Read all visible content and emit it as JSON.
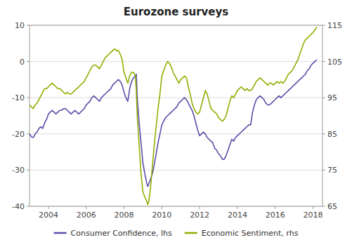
{
  "chart_data": {
    "type": "line",
    "title": "Eurozone surveys",
    "x": [
      2003.0,
      2003.1,
      2003.2,
      2003.3,
      2003.4,
      2003.5,
      2003.6,
      2003.7,
      2003.8,
      2003.9,
      2004.0,
      2004.1,
      2004.2,
      2004.3,
      2004.4,
      2004.5,
      2004.6,
      2004.7,
      2004.8,
      2004.9,
      2005.0,
      2005.1,
      2005.2,
      2005.3,
      2005.4,
      2005.5,
      2005.6,
      2005.7,
      2005.8,
      2005.9,
      2006.0,
      2006.1,
      2006.2,
      2006.3,
      2006.4,
      2006.5,
      2006.6,
      2006.7,
      2006.8,
      2006.9,
      2007.0,
      2007.1,
      2007.2,
      2007.3,
      2007.4,
      2007.5,
      2007.6,
      2007.7,
      2007.8,
      2007.9,
      2008.0,
      2008.1,
      2008.2,
      2008.3,
      2008.4,
      2008.5,
      2008.6,
      2008.65,
      2008.7,
      2008.8,
      2008.9,
      2009.0,
      2009.1,
      2009.2,
      2009.25,
      2009.3,
      2009.4,
      2009.5,
      2009.6,
      2009.7,
      2009.8,
      2009.9,
      2010.0,
      2010.1,
      2010.2,
      2010.3,
      2010.4,
      2010.5,
      2010.6,
      2010.7,
      2010.8,
      2010.9,
      2011.0,
      2011.1,
      2011.2,
      2011.3,
      2011.4,
      2011.5,
      2011.6,
      2011.7,
      2011.8,
      2011.9,
      2012.0,
      2012.1,
      2012.2,
      2012.3,
      2012.4,
      2012.5,
      2012.6,
      2012.7,
      2012.8,
      2012.9,
      2013.0,
      2013.1,
      2013.2,
      2013.3,
      2013.4,
      2013.5,
      2013.6,
      2013.7,
      2013.8,
      2013.9,
      2014.0,
      2014.1,
      2014.2,
      2014.3,
      2014.4,
      2014.5,
      2014.6,
      2014.7,
      2014.8,
      2014.9,
      2015.0,
      2015.1,
      2015.2,
      2015.3,
      2015.4,
      2015.5,
      2015.6,
      2015.7,
      2015.8,
      2015.9,
      2016.0,
      2016.1,
      2016.2,
      2016.3,
      2016.4,
      2016.5,
      2016.6,
      2016.7,
      2016.8,
      2016.9,
      2017.0,
      2017.1,
      2017.2,
      2017.3,
      2017.4,
      2017.5,
      2017.6,
      2017.7,
      2017.8,
      2017.9,
      2018.0,
      2018.2
    ],
    "series": [
      {
        "name": "Consumer Confidence, lhs",
        "color": "#5b4ea8",
        "values": [
          -20.0,
          -20.8,
          -21.0,
          -20.0,
          -19.5,
          -18.5,
          -18.0,
          -18.5,
          -17.0,
          -16.0,
          -14.5,
          -14.0,
          -13.5,
          -14.0,
          -14.5,
          -14.0,
          -13.5,
          -13.5,
          -13.0,
          -13.0,
          -13.5,
          -14.0,
          -14.5,
          -14.0,
          -13.5,
          -14.0,
          -14.5,
          -14.0,
          -13.5,
          -13.0,
          -12.0,
          -11.5,
          -11.0,
          -10.0,
          -9.5,
          -10.0,
          -10.5,
          -11.0,
          -10.0,
          -9.5,
          -9.0,
          -8.5,
          -8.0,
          -7.5,
          -6.5,
          -6.0,
          -5.5,
          -5.0,
          -5.5,
          -6.5,
          -8.5,
          -10.0,
          -11.0,
          -7.5,
          -5.5,
          -4.5,
          -4.0,
          -3.5,
          -10.0,
          -17.0,
          -22.5,
          -28.0,
          -31.0,
          -33.5,
          -34.5,
          -34.0,
          -32.5,
          -31.0,
          -28.5,
          -25.5,
          -22.5,
          -20.0,
          -17.5,
          -16.5,
          -15.5,
          -15.0,
          -14.5,
          -14.0,
          -13.5,
          -13.0,
          -12.5,
          -11.5,
          -11.0,
          -10.5,
          -10.0,
          -10.5,
          -11.5,
          -12.5,
          -13.5,
          -15.0,
          -17.0,
          -19.0,
          -20.5,
          -20.0,
          -19.5,
          -20.0,
          -21.0,
          -21.5,
          -22.0,
          -22.5,
          -24.0,
          -24.5,
          -25.5,
          -26.0,
          -27.0,
          -27.0,
          -26.0,
          -24.5,
          -23.0,
          -21.5,
          -22.0,
          -21.0,
          -20.5,
          -20.0,
          -19.5,
          -19.0,
          -18.5,
          -18.0,
          -17.5,
          -17.5,
          -14.0,
          -12.0,
          -10.5,
          -10.0,
          -9.5,
          -10.0,
          -10.5,
          -11.5,
          -12.0,
          -12.0,
          -11.5,
          -11.0,
          -10.5,
          -10.0,
          -9.5,
          -10.0,
          -9.5,
          -9.0,
          -8.5,
          -8.0,
          -7.5,
          -7.0,
          -6.5,
          -6.0,
          -5.5,
          -5.0,
          -4.5,
          -4.0,
          -3.5,
          -2.5,
          -2.0,
          -1.0,
          -0.5,
          0.5
        ]
      },
      {
        "name": "Economic Sentiment, rhs",
        "color": "#8db000",
        "axis": "y2",
        "values": [
          93.0,
          92.5,
          92.0,
          93.0,
          93.5,
          94.5,
          95.5,
          96.5,
          97.5,
          97.5,
          98.0,
          98.5,
          99.0,
          98.5,
          98.0,
          97.5,
          97.5,
          97.0,
          96.5,
          96.0,
          96.5,
          96.0,
          96.0,
          96.5,
          97.0,
          97.5,
          98.0,
          98.5,
          99.0,
          99.5,
          100.5,
          101.5,
          102.5,
          103.5,
          104.0,
          104.0,
          103.5,
          103.0,
          104.0,
          105.0,
          106.0,
          106.5,
          107.0,
          107.5,
          108.0,
          108.5,
          108.0,
          108.0,
          107.0,
          105.5,
          102.0,
          100.5,
          99.0,
          101.0,
          102.0,
          102.0,
          101.0,
          97.0,
          90.0,
          82.0,
          74.0,
          69.0,
          67.5,
          66.5,
          65.5,
          66.0,
          70.0,
          76.0,
          82.0,
          87.0,
          92.0,
          96.0,
          101.0,
          102.5,
          104.0,
          105.0,
          104.5,
          103.5,
          102.0,
          101.0,
          100.0,
          99.0,
          100.0,
          100.5,
          101.0,
          100.5,
          98.0,
          96.0,
          93.5,
          92.0,
          91.0,
          90.5,
          91.0,
          93.0,
          95.0,
          97.0,
          96.0,
          94.0,
          92.0,
          91.5,
          91.0,
          90.5,
          89.5,
          89.0,
          88.5,
          89.0,
          90.0,
          92.0,
          94.0,
          95.5,
          95.0,
          96.0,
          97.0,
          97.5,
          98.0,
          97.5,
          97.0,
          97.5,
          97.0,
          97.0,
          97.5,
          98.5,
          99.5,
          100.0,
          100.5,
          100.0,
          99.5,
          99.0,
          98.5,
          99.0,
          99.0,
          98.5,
          99.0,
          99.5,
          99.0,
          99.5,
          99.0,
          99.5,
          100.5,
          101.5,
          102.0,
          102.5,
          103.5,
          104.5,
          105.5,
          107.0,
          108.5,
          110.0,
          111.0,
          111.5,
          112.0,
          112.5,
          113.0,
          114.5
        ]
      }
    ],
    "xlim": [
      2003.0,
      2018.5
    ],
    "xticks": [
      2004,
      2006,
      2008,
      2010,
      2012,
      2014,
      2016,
      2018
    ],
    "ylim": [
      -40,
      10
    ],
    "yticks": [
      -40,
      -30,
      -20,
      -10,
      0,
      10
    ],
    "y2lim": [
      65,
      115
    ],
    "y2ticks": [
      65,
      75,
      85,
      95,
      105,
      115
    ],
    "grid": true,
    "legend": "bottom"
  }
}
